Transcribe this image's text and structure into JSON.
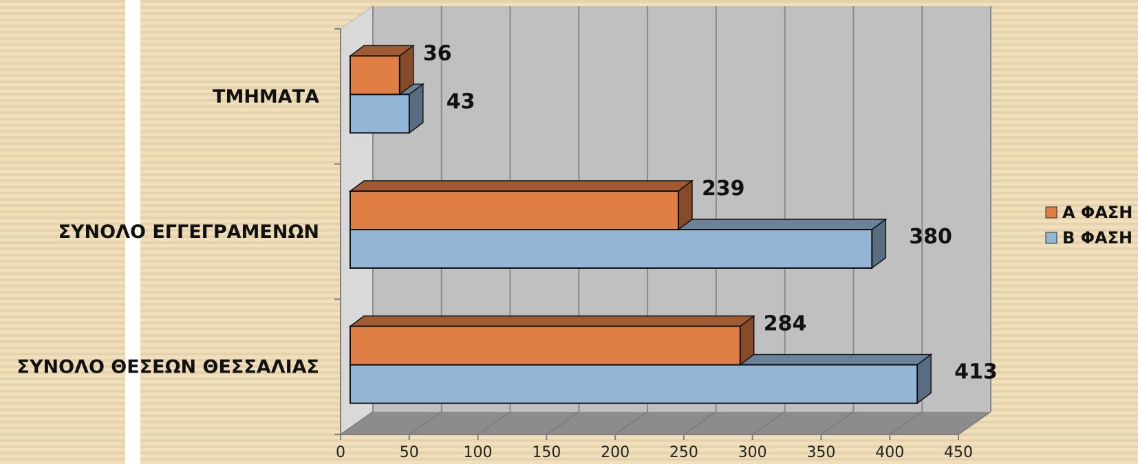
{
  "chart_data": {
    "type": "bar",
    "orientation": "horizontal",
    "three_d": true,
    "categories": [
      "ΣΥΝΟΛΟ ΘΕΣΕΩΝ ΘΕΣΣΑΛΙΑΣ",
      "ΣΥΝΟΛΟ ΕΓΓΕΓΡΑΜΕΝΩΝ",
      "ΤΜΗΜΑΤΑ"
    ],
    "series": [
      {
        "name": "Α ΦΑΣΗ",
        "values": [
          284,
          239,
          36
        ],
        "color": "#e07f45"
      },
      {
        "name": "Β ΦΑΣΗ",
        "values": [
          413,
          380,
          43
        ],
        "color": "#93b6d6"
      }
    ],
    "xlim": [
      0,
      450
    ],
    "ticks": [
      "0",
      "50",
      "100",
      "150",
      "200",
      "250",
      "300",
      "350",
      "400",
      "450"
    ],
    "grid": true,
    "legend_position": "right",
    "title": "",
    "xlabel": "",
    "ylabel": ""
  }
}
